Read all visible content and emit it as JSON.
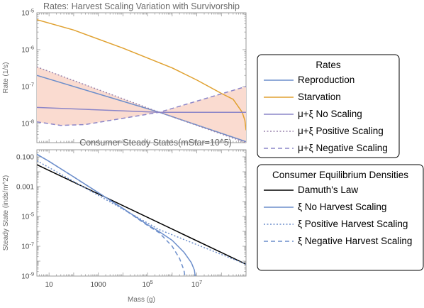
{
  "chart_data": [
    {
      "type": "line",
      "title": "Rates: Harvest Scaling Variation with Survivorship",
      "ylabel": "Rate (1/s)",
      "xscale": "log",
      "yscale": "log",
      "xlim": [
        3.2,
        1000000000
      ],
      "ylim": [
        3e-09,
        1e-05
      ],
      "ytick_labels": [
        {
          "label": "10",
          "exp": "-8",
          "value": 1e-08
        },
        {
          "label": "10",
          "exp": "-7",
          "value": 1e-07
        },
        {
          "label": "10",
          "exp": "-6",
          "value": 1e-06
        },
        {
          "label": "10",
          "exp": "-5",
          "value": 1e-05
        }
      ],
      "shaded_region": {
        "description": "between μ+ξ Positive Scaling and μ+ξ Negative Scaling",
        "color": "#fadbd0"
      },
      "series": [
        {
          "name": "Reproduction",
          "color": "#6c8ecb",
          "dash": "solid",
          "x": [
            3.2,
            300000,
            1000000000
          ],
          "y": [
            2e-07,
            2e-08,
            3.2e-09
          ]
        },
        {
          "name": "Starvation",
          "color": "#e0a130",
          "dash": "solid",
          "x": [
            3.2,
            100,
            10000,
            1000000,
            10000000,
            100000000,
            300000000,
            700000000,
            900000000,
            1000000000
          ],
          "y": [
            6.5e-06,
            3.4e-06,
            1.1e-06,
            3.2e-07,
            1.5e-07,
            6.5e-08,
            4.5e-08,
            2e-08,
            1.2e-08,
            6.5e-09
          ]
        },
        {
          "name": "μ+ξ No Scaling",
          "color": "#8b85c8",
          "dash": "solid",
          "x": [
            3.2,
            300000,
            1000000000
          ],
          "y": [
            2.7e-08,
            2e-08,
            2e-08
          ]
        },
        {
          "name": "μ+ξ Positive Scaling",
          "color": "#9a84ad",
          "dash": "dotted",
          "x": [
            3.2,
            300000,
            1000000000
          ],
          "y": [
            3.4e-07,
            2e-08,
            3e-09
          ]
        },
        {
          "name": "μ+ξ Negative Scaling",
          "color": "#8b85c8",
          "dash": "dashed",
          "x": [
            3.2,
            30,
            300,
            300000,
            1000000000
          ],
          "y": [
            1.1e-08,
            8.8e-09,
            9.3e-09,
            2e-08,
            1e-07
          ]
        }
      ],
      "legend": {
        "title": "Rates",
        "placement": "right"
      }
    },
    {
      "type": "line",
      "title": "Consumer Steady States(mStar=10^5)",
      "xlabel": "Mass (g)",
      "ylabel": "Steady State (inds/m^2)",
      "xscale": "log",
      "yscale": "log",
      "xlim": [
        3.2,
        1000000000
      ],
      "ylim": [
        1e-09,
        0.3
      ],
      "xtick_labels": [
        {
          "label": "10",
          "value": 10
        },
        {
          "label": "1000",
          "value": 1000
        },
        {
          "label": "10",
          "exp": "5",
          "value": 100000
        },
        {
          "label": "10",
          "exp": "7",
          "value": 10000000
        }
      ],
      "ytick_labels": [
        {
          "label": "10",
          "exp": "-9",
          "value": 1e-09
        },
        {
          "label": "10",
          "exp": "-7",
          "value": 1e-07
        },
        {
          "label": "10",
          "exp": "-5",
          "value": 1e-05
        },
        {
          "label": "0.001",
          "value": 0.001
        },
        {
          "label": "0.100",
          "value": 0.1
        }
      ],
      "series": [
        {
          "name": "Damuth's Law",
          "color": "#000000",
          "dash": "solid",
          "x": [
            3.2,
            1000000000
          ],
          "y": [
            0.03,
            6.2e-09
          ]
        },
        {
          "name": "ξ No Harvest Scaling",
          "color": "#6c8ecb",
          "dash": "solid",
          "x": [
            3.2,
            10,
            100,
            10000,
            100000,
            300000,
            1000000,
            3000000,
            6000000,
            8000000,
            8500000,
            8600000
          ],
          "y": [
            0.15,
            0.05,
            0.0045,
            3.5e-05,
            2.8e-06,
            9.5e-07,
            2.5e-07,
            4e-08,
            8e-09,
            2.5e-09,
            1.2e-09,
            1e-09
          ]
        },
        {
          "name": "ξ Positive Harvest Scaling",
          "color": "#6c8ecb",
          "dash": "dotted",
          "x": [
            3.2,
            300000,
            1000000000
          ],
          "y": [
            0.055,
            1.3e-06,
            6.2e-09
          ]
        },
        {
          "name": "ξ Negative Harvest Scaling",
          "color": "#6c8ecb",
          "dash": "dashed",
          "x": [
            3.2,
            10,
            100,
            10000,
            100000,
            300000,
            1000000,
            2000000,
            3000000,
            3300000
          ],
          "y": [
            0.15,
            0.05,
            0.0045,
            3.3e-05,
            2.5e-06,
            8e-07,
            1e-07,
            1.5e-08,
            2.5e-09,
            1e-09
          ]
        }
      ],
      "legend": {
        "title": "Consumer Equilibrium Densities",
        "placement": "right"
      }
    }
  ]
}
